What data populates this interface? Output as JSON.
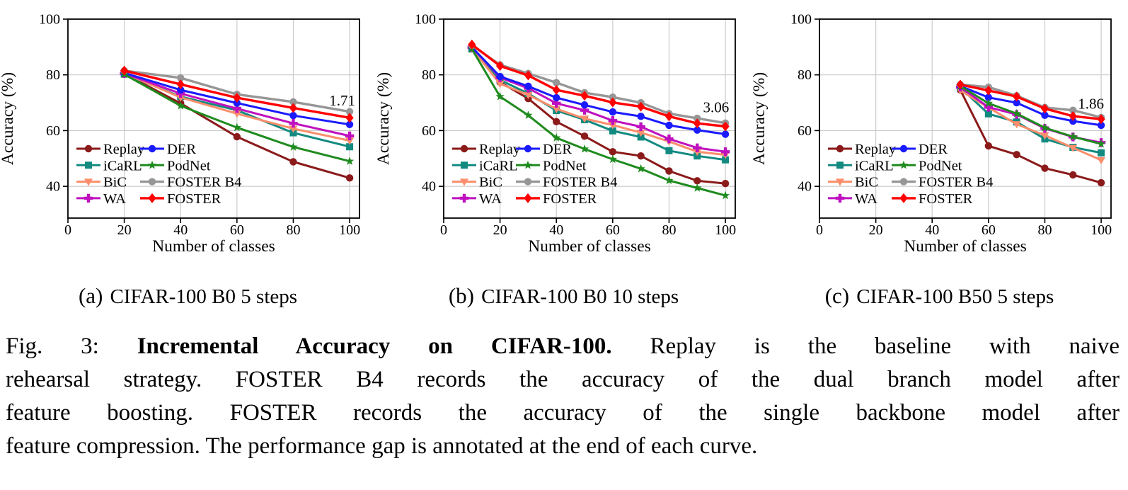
{
  "figure": {
    "caption_lines": [
      {
        "prefix": "Fig. 3: ",
        "bold": "Incremental Accuracy on CIFAR-100.",
        "rest": " Replay is the baseline with naive"
      },
      {
        "prefix": "",
        "bold": "",
        "rest": "rehearsal strategy. FOSTER B4 records the accuracy of the dual branch model after"
      },
      {
        "prefix": "",
        "bold": "",
        "rest": "feature boosting. FOSTER records the accuracy of the single backbone model after"
      },
      {
        "prefix": "",
        "bold": "",
        "rest": "feature compression. The performance gap is annotated at the end of each curve."
      }
    ]
  },
  "axes": {
    "xlabel": "Number of classes",
    "ylabel": "Accuracy (%)",
    "xticks": [
      0,
      20,
      40,
      60,
      80,
      100
    ],
    "yticks": [
      40,
      60,
      80,
      100
    ],
    "xlim": [
      0,
      103.5
    ],
    "ylim": [
      28.6,
      100
    ],
    "grid": true,
    "grid_color": "#cbcbcb",
    "legend_position": "lower-left-inside"
  },
  "series_meta": {
    "replay": {
      "label": "Replay",
      "color": "#8B1A1A",
      "marker": "circle",
      "lw": 3
    },
    "icarl": {
      "label": "iCaRL",
      "color": "#128A80",
      "marker": "square",
      "lw": 3
    },
    "bic": {
      "label": "BiC",
      "color": "#FA8E6C",
      "marker": "triangle-down",
      "lw": 3
    },
    "wa": {
      "label": "WA",
      "color": "#BF10BF",
      "marker": "plus",
      "lw": 3
    },
    "der": {
      "label": "DER",
      "color": "#1A1AFF",
      "marker": "circle",
      "lw": 3
    },
    "podnet": {
      "label": "PodNet",
      "color": "#1E8B1E",
      "marker": "star",
      "lw": 3
    },
    "fosterb4": {
      "label": "FOSTER B4",
      "color": "#969696",
      "marker": "circle",
      "lw": 3.4
    },
    "foster": {
      "label": "FOSTER",
      "color": "#FF0000",
      "marker": "diamond",
      "lw": 3.4
    }
  },
  "series_order": [
    "replay",
    "icarl",
    "bic",
    "wa",
    "der",
    "podnet",
    "fosterb4",
    "foster"
  ],
  "legend": {
    "columns": [
      [
        "replay",
        "icarl",
        "bic",
        "wa"
      ],
      [
        "der",
        "podnet",
        "fosterb4",
        "foster"
      ]
    ]
  },
  "chart_data": [
    {
      "id": "a",
      "type": "line",
      "subcaption_marker": "(a)",
      "subcaption_title": "CIFAR-100 B0 5 steps",
      "annotation": {
        "text": "1.71",
        "x": 102,
        "y": 70.9
      },
      "x": [
        20,
        40,
        60,
        80,
        100
      ],
      "series": {
        "replay": [
          80.4,
          69.8,
          57.8,
          48.8,
          43.0
        ],
        "icarl": [
          80.3,
          72.2,
          67.3,
          59.2,
          54.2
        ],
        "bic": [
          80.6,
          71.9,
          66.1,
          60.7,
          56.4
        ],
        "wa": [
          80.5,
          73.3,
          67.9,
          62.6,
          58.1
        ],
        "der": [
          80.7,
          74.6,
          69.9,
          65.4,
          62.2
        ],
        "podnet": [
          80.2,
          68.9,
          61.1,
          54.1,
          49.0
        ],
        "fosterb4": [
          81.5,
          78.9,
          73.0,
          70.3,
          66.8
        ],
        "foster": [
          81.5,
          76.6,
          71.8,
          68.1,
          64.6
        ]
      }
    },
    {
      "id": "b",
      "type": "line",
      "subcaption_marker": "(b)",
      "subcaption_title": "CIFAR-100 B0 10 steps",
      "annotation": {
        "text": "3.06",
        "x": 101.3,
        "y": 68.5
      },
      "x": [
        10,
        20,
        30,
        40,
        50,
        60,
        70,
        80,
        90,
        100
      ],
      "series": {
        "replay": [
          90.2,
          77.4,
          71.5,
          63.2,
          58.0,
          52.4,
          50.9,
          45.5,
          42.0,
          41.0
        ],
        "icarl": [
          89.3,
          78.2,
          73.3,
          67.2,
          63.9,
          59.9,
          57.7,
          52.8,
          50.9,
          49.5
        ],
        "bic": [
          89.4,
          76.8,
          72.8,
          67.8,
          64.3,
          62.0,
          59.3,
          56.1,
          52.4,
          51.3
        ],
        "wa": [
          89.9,
          79.0,
          75.2,
          69.8,
          67.3,
          63.6,
          61.4,
          57.0,
          53.8,
          52.4
        ],
        "der": [
          89.9,
          79.4,
          75.9,
          71.8,
          69.2,
          66.7,
          65.1,
          61.9,
          60.2,
          58.7
        ],
        "podnet": [
          89.3,
          72.2,
          65.5,
          57.4,
          53.4,
          49.7,
          46.3,
          42.1,
          39.4,
          36.7
        ],
        "fosterb4": [
          90.6,
          83.6,
          80.5,
          77.2,
          73.6,
          72.0,
          70.0,
          66.1,
          64.4,
          62.7
        ],
        "foster": [
          90.9,
          83.2,
          79.8,
          74.6,
          72.5,
          70.1,
          68.6,
          65.1,
          62.6,
          61.5
        ]
      }
    },
    {
      "id": "c",
      "type": "line",
      "subcaption_marker": "(c)",
      "subcaption_title": "CIFAR-100 B50 5 steps",
      "annotation": {
        "text": "1.86",
        "x": 101,
        "y": 69.8
      },
      "x": [
        50,
        60,
        70,
        80,
        90,
        100
      ],
      "series": {
        "replay": [
          74.6,
          54.5,
          51.4,
          46.5,
          44.1,
          41.3
        ],
        "icarl": [
          75.4,
          66.0,
          63.1,
          57.0,
          54.0,
          52.0
        ],
        "bic": [
          74.4,
          68.3,
          62.3,
          58.3,
          53.8,
          49.4
        ],
        "wa": [
          75.6,
          68.4,
          65.8,
          60.8,
          57.7,
          55.7
        ],
        "der": [
          76.0,
          71.9,
          70.0,
          65.5,
          63.4,
          61.9
        ],
        "podnet": [
          76.0,
          69.8,
          66.1,
          61.0,
          57.8,
          55.2
        ],
        "fosterb4": [
          76.5,
          75.6,
          72.5,
          68.3,
          67.3,
          64.7
        ],
        "foster": [
          76.5,
          74.4,
          72.2,
          67.9,
          65.2,
          64.1
        ]
      }
    }
  ]
}
